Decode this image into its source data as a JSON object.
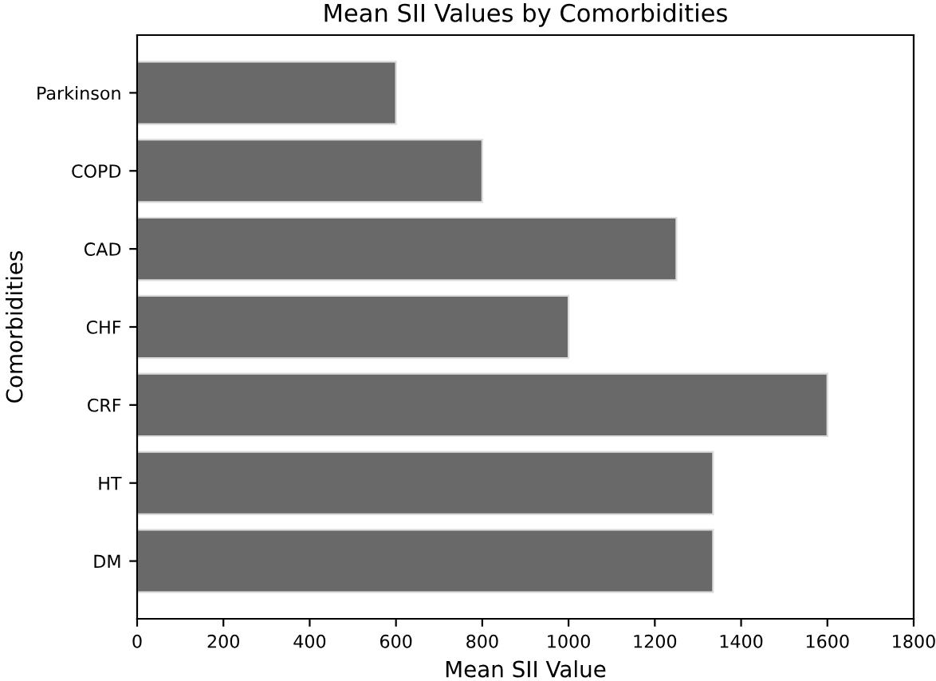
{
  "chart_data": {
    "type": "bar",
    "orientation": "horizontal",
    "title": "Mean SII Values by Comorbidities",
    "xlabel": "Mean SII Value",
    "ylabel": "Comorbidities",
    "categories": [
      "Parkinson",
      "COPD",
      "CAD",
      "CHF",
      "CRF",
      "HT",
      "DM"
    ],
    "values": [
      600,
      800,
      1250,
      1000,
      1600,
      1335,
      1335
    ],
    "color": "#696969",
    "xlim": [
      0,
      1800
    ],
    "xticks": [
      0,
      200,
      400,
      600,
      800,
      1000,
      1200,
      1400,
      1600,
      1800
    ],
    "grid": false
  }
}
